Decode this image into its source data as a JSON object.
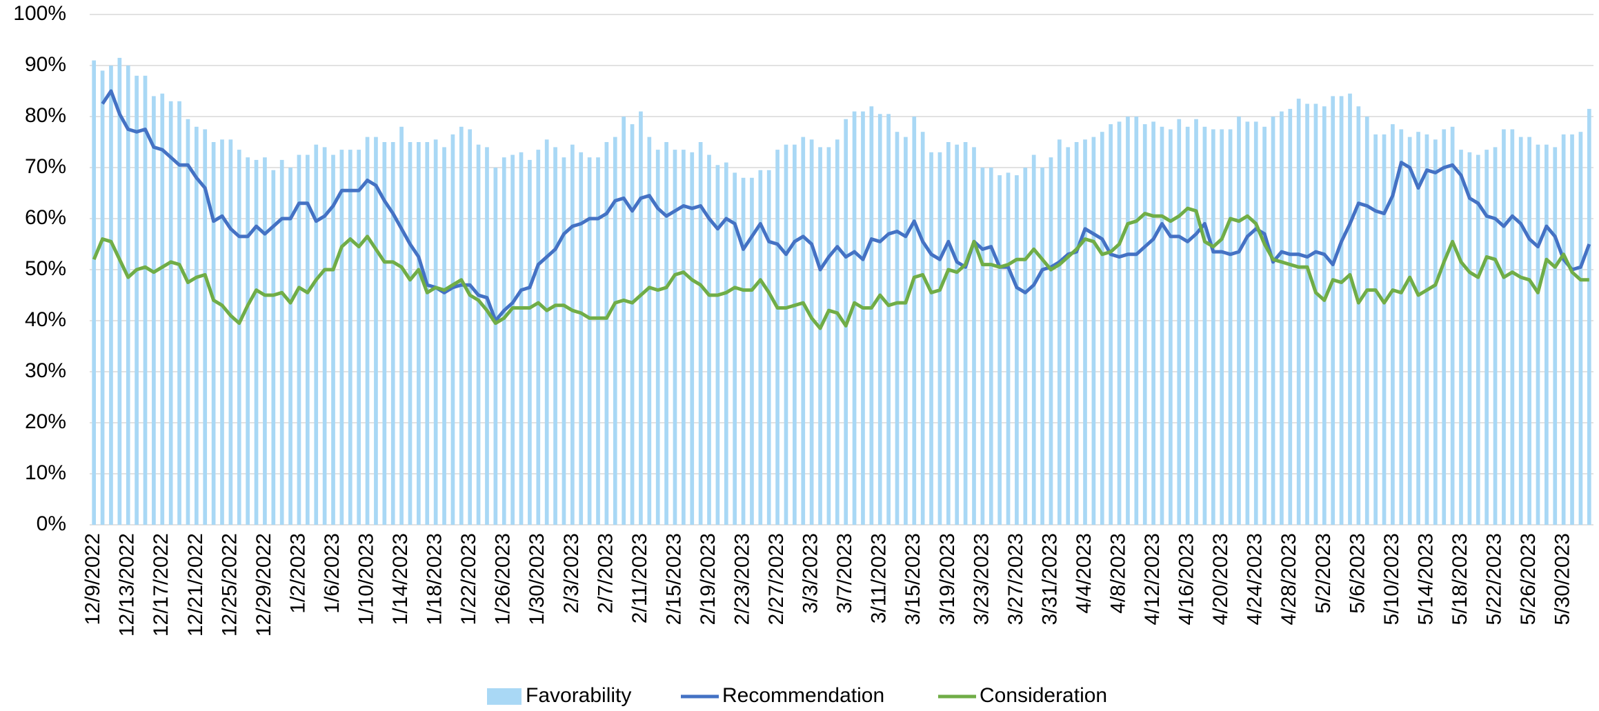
{
  "chart_data": {
    "type": "combo",
    "categories": [
      "12/9/2022",
      null,
      null,
      null,
      "12/13/2022",
      null,
      null,
      null,
      "12/17/2022",
      null,
      null,
      null,
      "12/21/2022",
      null,
      null,
      null,
      "12/25/2022",
      null,
      null,
      null,
      "12/29/2022",
      null,
      null,
      null,
      "1/2/2023",
      null,
      null,
      null,
      "1/6/2023",
      null,
      null,
      null,
      "1/10/2023",
      null,
      null,
      null,
      "1/14/2023",
      null,
      null,
      null,
      "1/18/2023",
      null,
      null,
      null,
      "1/22/2023",
      null,
      null,
      null,
      "1/26/2023",
      null,
      null,
      null,
      "1/30/2023",
      null,
      null,
      null,
      "2/3/2023",
      null,
      null,
      null,
      "2/7/2023",
      null,
      null,
      null,
      "2/11/2023",
      null,
      null,
      null,
      "2/15/2023",
      null,
      null,
      null,
      "2/19/2023",
      null,
      null,
      null,
      "2/23/2023",
      null,
      null,
      null,
      "2/27/2023",
      null,
      null,
      null,
      "3/3/2023",
      null,
      null,
      null,
      "3/7/2023",
      null,
      null,
      null,
      "3/11/2023",
      null,
      null,
      null,
      "3/15/2023",
      null,
      null,
      null,
      "3/19/2023",
      null,
      null,
      null,
      "3/23/2023",
      null,
      null,
      null,
      "3/27/2023",
      null,
      null,
      null,
      "3/31/2023",
      null,
      null,
      null,
      "4/4/2023",
      null,
      null,
      null,
      "4/8/2023",
      null,
      null,
      null,
      "4/12/2023",
      null,
      null,
      null,
      "4/16/2023",
      null,
      null,
      null,
      "4/20/2023",
      null,
      null,
      null,
      "4/24/2023",
      null,
      null,
      null,
      "4/28/2023",
      null,
      null,
      null,
      "5/2/2023",
      null,
      null,
      null,
      "5/6/2023",
      null,
      null,
      null,
      "5/10/2023",
      null,
      null,
      null,
      "5/14/2023",
      null,
      null,
      null,
      "5/18/2023",
      null,
      null,
      null,
      "5/22/2023",
      null,
      null,
      null,
      "5/26/2023",
      null,
      null,
      null,
      "5/30/2023",
      null,
      null,
      null
    ],
    "series": [
      {
        "name": "Favorability",
        "type": "bar",
        "color": "#a9d8f5",
        "values": [
          91,
          89,
          90,
          91.5,
          90,
          88,
          88,
          84,
          84.5,
          83,
          83,
          79.5,
          78,
          77.5,
          75,
          75.5,
          75.5,
          73.5,
          72,
          71.5,
          72,
          69.5,
          71.5,
          70,
          72.5,
          72.5,
          74.5,
          74,
          72.5,
          73.5,
          73.5,
          73.5,
          76,
          76,
          75,
          75,
          78,
          75,
          75,
          75,
          75.5,
          74,
          76.5,
          78,
          77.5,
          74.5,
          74,
          70,
          72,
          72.5,
          73,
          71.5,
          73.5,
          75.5,
          74,
          72,
          74.5,
          73,
          72,
          72,
          75,
          76,
          80,
          78.5,
          81,
          76,
          73.5,
          75,
          73.5,
          73.5,
          73,
          75,
          72.5,
          70.5,
          71,
          69,
          68,
          68,
          69.5,
          69.5,
          73.5,
          74.5,
          74.5,
          76,
          75.5,
          74,
          74,
          75.5,
          79.5,
          81,
          81,
          82,
          80.5,
          80.5,
          77,
          76,
          80,
          77,
          73,
          73,
          75,
          74.5,
          75,
          74,
          70,
          70,
          68.5,
          69,
          68.5,
          70,
          72.5,
          70,
          72,
          75.5,
          74,
          75,
          75.5,
          76,
          77,
          78.5,
          79,
          80,
          80,
          78.5,
          79,
          78,
          77.5,
          79.5,
          78,
          79.5,
          78,
          77.5,
          77.5,
          77.5,
          80,
          79,
          79,
          78,
          80,
          81,
          81.5,
          83.5,
          82.5,
          82.5,
          82,
          84,
          84,
          84.5,
          82,
          80,
          76.5,
          76.5,
          78.5,
          77.5,
          76,
          77,
          76.5,
          75.5,
          77.5,
          78,
          73.5,
          73,
          72.5,
          73.5,
          74,
          77.5,
          77.5,
          76,
          76,
          74.5,
          74.5,
          74,
          76.5,
          76.5,
          77,
          81.5
        ]
      },
      {
        "name": "Recommendation",
        "type": "line",
        "color": "#4472c4",
        "values": [
          null,
          82.5,
          85,
          80.5,
          77.5,
          77,
          77.5,
          74,
          73.5,
          72,
          70.5,
          70.5,
          68,
          66,
          59.5,
          60.5,
          58,
          56.5,
          56.5,
          58.5,
          57,
          58.5,
          60,
          60,
          63,
          63,
          59.5,
          60.5,
          62.5,
          65.5,
          65.5,
          65.5,
          67.5,
          66.5,
          63.5,
          61,
          58,
          55,
          52.5,
          47,
          46.5,
          45.5,
          46.5,
          47,
          47,
          45,
          44.5,
          40,
          42,
          43.5,
          46,
          46.5,
          51,
          52.5,
          54,
          57,
          58.5,
          59,
          60,
          60,
          61,
          63.5,
          64,
          61.5,
          64,
          64.5,
          62,
          60.5,
          61.5,
          62.5,
          62,
          62.5,
          60,
          58,
          60,
          59,
          54,
          56.5,
          59,
          55.5,
          55,
          53,
          55.5,
          56.5,
          55,
          50,
          52.5,
          54.5,
          52.5,
          53.5,
          52,
          56,
          55.5,
          57,
          57.5,
          56.5,
          59.5,
          55.5,
          53,
          52,
          55.5,
          51.5,
          50.5,
          55.5,
          54,
          54.5,
          50.5,
          50.5,
          46.5,
          45.5,
          47,
          50,
          50.5,
          51.5,
          53,
          53.5,
          58,
          57,
          56,
          53,
          52.5,
          53,
          53,
          54.5,
          56,
          59,
          56.5,
          56.5,
          55.5,
          57,
          59,
          53.5,
          53.5,
          53,
          53.5,
          56.5,
          58,
          57,
          51.5,
          53.5,
          53,
          53,
          52.5,
          53.5,
          53,
          51,
          55.5,
          59,
          63,
          62.5,
          61.5,
          61,
          64.5,
          71,
          70,
          66,
          69.5,
          69,
          70,
          70.5,
          68.5,
          64,
          63,
          60.5,
          60,
          58.5,
          60.5,
          59,
          56,
          54.5,
          58.5,
          56.5,
          52,
          50,
          50.5,
          55
        ]
      },
      {
        "name": "Consideration",
        "type": "line",
        "color": "#70ad47",
        "values": [
          52,
          56,
          55.5,
          52,
          48.5,
          50,
          50.5,
          49.5,
          50.5,
          51.5,
          51,
          47.5,
          48.5,
          49,
          44,
          43,
          41,
          39.5,
          43,
          46,
          45,
          45,
          45.5,
          43.5,
          46.5,
          45.5,
          48,
          50,
          50,
          54.5,
          56,
          54.5,
          56.5,
          54,
          51.5,
          51.5,
          50.5,
          48,
          50,
          45.5,
          46.5,
          46,
          47,
          48,
          45,
          44,
          42,
          39.5,
          40.5,
          42.5,
          42.5,
          42.5,
          43.5,
          42,
          43,
          43,
          42,
          41.5,
          40.5,
          40.5,
          40.5,
          43.5,
          44,
          43.5,
          45,
          46.5,
          46,
          46.5,
          49,
          49.5,
          48,
          47,
          45,
          45,
          45.5,
          46.5,
          46,
          46,
          48,
          45.5,
          42.5,
          42.5,
          43,
          43.5,
          40.5,
          38.5,
          42,
          41.5,
          39,
          43.5,
          42.5,
          42.5,
          45,
          43,
          43.5,
          43.5,
          48.5,
          49,
          45.5,
          46,
          50,
          49.5,
          51,
          55.5,
          51,
          51,
          50.5,
          51,
          52,
          52,
          54,
          52,
          50,
          51,
          52.5,
          54,
          56,
          55.5,
          53,
          53.5,
          55,
          59,
          59.5,
          61,
          60.5,
          60.5,
          59.5,
          60.5,
          62,
          61.5,
          55.5,
          54.5,
          56,
          60,
          59.5,
          60.5,
          59,
          55,
          52,
          51.5,
          51,
          50.5,
          50.5,
          45.5,
          44,
          48,
          47.5,
          49,
          43.5,
          46,
          46,
          43.5,
          46,
          45.5,
          48.5,
          45,
          46,
          47,
          51.5,
          55.5,
          51.5,
          49.5,
          48.5,
          52.5,
          52,
          48.5,
          49.5,
          48.5,
          48,
          45.5,
          52,
          50.5,
          53,
          49.5,
          48,
          48
        ]
      }
    ],
    "ylim": [
      0,
      100
    ],
    "yticks": [
      {
        "value": 0,
        "label": "0%"
      },
      {
        "value": 10,
        "label": "10%"
      },
      {
        "value": 20,
        "label": "20%"
      },
      {
        "value": 30,
        "label": "30%"
      },
      {
        "value": 40,
        "label": "40%"
      },
      {
        "value": 50,
        "label": "50%"
      },
      {
        "value": 60,
        "label": "60%"
      },
      {
        "value": 70,
        "label": "70%"
      },
      {
        "value": 80,
        "label": "80%"
      },
      {
        "value": 90,
        "label": "90%"
      },
      {
        "value": 100,
        "label": "100%"
      }
    ],
    "grid": true,
    "legend": "bottom"
  }
}
